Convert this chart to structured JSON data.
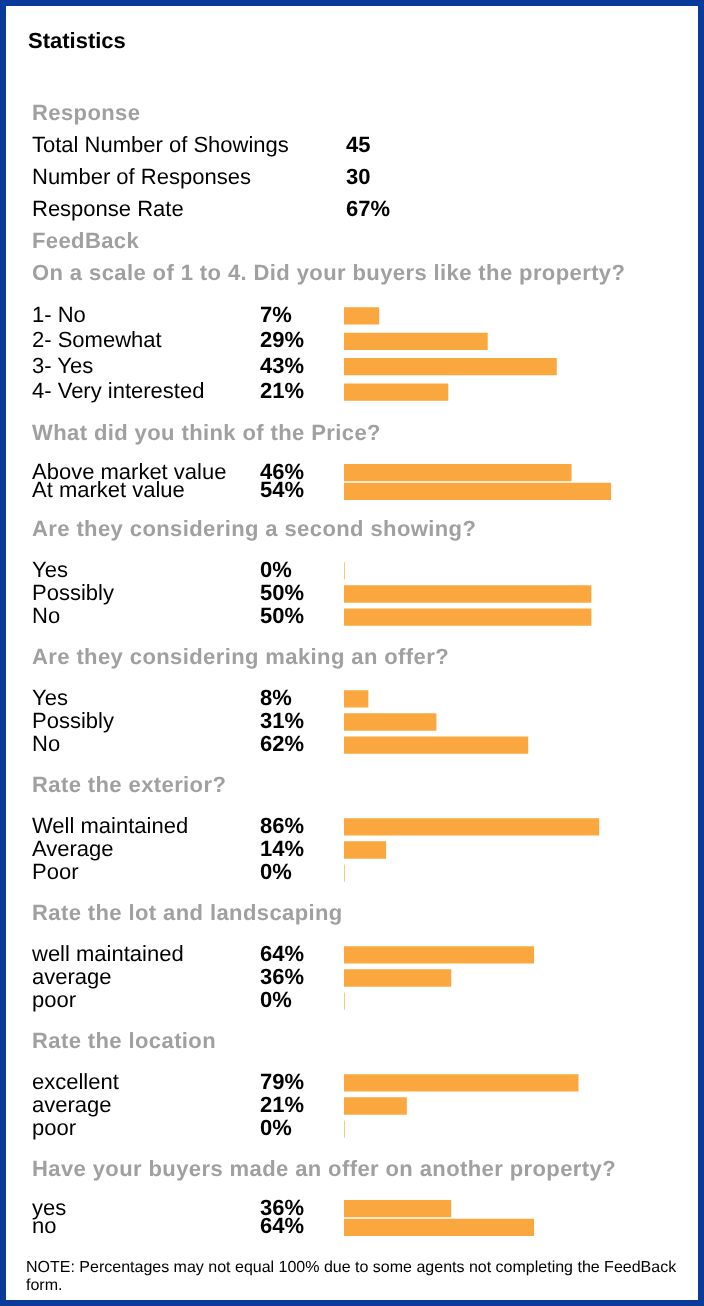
{
  "chart_data": [
    {
      "type": "other",
      "title": "Statistics",
      "subtitle": "Response",
      "categories": [
        "Total Number of Showings",
        "Number of Responses",
        "Response Rate"
      ],
      "value_labels": [
        "45",
        "30",
        "67%"
      ]
    },
    {
      "type": "bar",
      "orientation": "horizontal",
      "title": "FeedBack",
      "subtitle": "On a scale of 1 to 4. Did your buyers like the property?",
      "categories": [
        "1- No",
        "2- Somewhat",
        "3- Yes",
        "4- Very interested"
      ],
      "values": [
        7,
        29,
        43,
        21
      ],
      "value_labels": [
        "7%",
        "29%",
        "43%",
        "21%"
      ],
      "color": "#fba73f",
      "tick_labels": "y"
    },
    {
      "type": "bar",
      "orientation": "horizontal",
      "title": "What did you think of the Price?",
      "categories": [
        "Above market value",
        "At market value"
      ],
      "values": [
        46,
        54
      ],
      "value_labels": [
        "46%",
        "54%"
      ],
      "color": "#fba73f",
      "tick_labels": "y"
    },
    {
      "type": "bar",
      "orientation": "horizontal",
      "title": "Are they considering a second showing?",
      "categories": [
        "Yes",
        "Possibly",
        "No"
      ],
      "values": [
        0,
        50,
        50
      ],
      "value_labels": [
        "0%",
        "50%",
        "50%"
      ],
      "color": "#fba73f",
      "tick_labels": "y"
    },
    {
      "type": "bar",
      "orientation": "horizontal",
      "title": "Are they considering making an offer?",
      "categories": [
        "Yes",
        "Possibly",
        "No"
      ],
      "values": [
        8,
        31,
        62
      ],
      "value_labels": [
        "8%",
        "31%",
        "62%"
      ],
      "color": "#fba73f",
      "tick_labels": "y"
    },
    {
      "type": "bar",
      "orientation": "horizontal",
      "title": "Rate the exterior?",
      "categories": [
        "Well maintained",
        "Average",
        "Poor"
      ],
      "values": [
        86,
        14,
        0
      ],
      "value_labels": [
        "86%",
        "14%",
        "0%"
      ],
      "color": "#fba73f",
      "tick_labels": "y"
    },
    {
      "type": "bar",
      "orientation": "horizontal",
      "title": "Rate the lot and landscaping",
      "categories": [
        "well maintained",
        "average",
        "poor"
      ],
      "values": [
        64,
        36,
        0
      ],
      "value_labels": [
        "64%",
        "36%",
        "0%"
      ],
      "color": "#fba73f",
      "tick_labels": "y"
    },
    {
      "type": "bar",
      "orientation": "horizontal",
      "title": "Rate the location",
      "categories": [
        "excellent",
        "average",
        "poor"
      ],
      "values": [
        79,
        21,
        0
      ],
      "value_labels": [
        "79%",
        "21%",
        "0%"
      ],
      "color": "#fba73f",
      "tick_labels": "y"
    },
    {
      "type": "bar",
      "orientation": "horizontal",
      "title": "Have your buyers made an offer on another property?",
      "categories": [
        "yes",
        "no"
      ],
      "values": [
        36,
        64
      ],
      "value_labels": [
        "36%",
        "64%"
      ],
      "color": "#fba73f",
      "tick_labels": "y",
      "annotations": [
        "NOTE: Percentages may not equal 100% due to some agents not completing the FeedBack form."
      ]
    }
  ]
}
